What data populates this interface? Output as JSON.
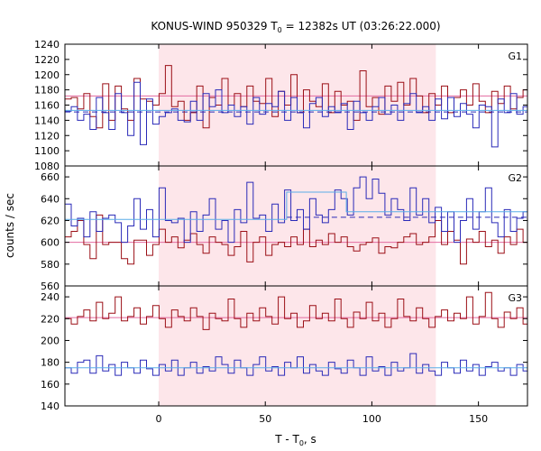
{
  "chart_data": {
    "type": "line",
    "title": "KONUS-WIND 950329 T",
    "title_sub": "0",
    "title_rest": " = 12382s UT (03:26:22.000)",
    "xlabel": "T - T",
    "xlabel_sub": "0",
    "xlabel_rest": ", s",
    "ylabel": "counts / sec",
    "xlim": [
      -44,
      173
    ],
    "x_ticks": [
      0,
      50,
      100,
      150
    ],
    "shaded_interval": [
      0,
      130
    ],
    "colors": {
      "red_series": "#9b0f16",
      "blue_series": "#2a2ab8",
      "red_fit": "#e36aa0",
      "blue_fit": "#5aaee8",
      "shade": "#fde6ea"
    },
    "bin_start": -44,
    "bin_width": 2.944,
    "panels": [
      {
        "name": "G1",
        "ylim": [
          1080,
          1240
        ],
        "y_ticks": [
          1080,
          1100,
          1120,
          1140,
          1160,
          1180,
          1200,
          1220,
          1240
        ],
        "red_fit": 1172,
        "blue_fit": 1153,
        "blue_steps": [
          [
            -44,
            173,
            1153
          ]
        ],
        "blue_dashed": [
          [
            -44,
            173,
            1151
          ]
        ],
        "red": [
          1168,
          1170,
          1155,
          1175,
          1145,
          1130,
          1188,
          1140,
          1185,
          1155,
          1140,
          1195,
          1168,
          1165,
          1160,
          1175,
          1212,
          1158,
          1165,
          1140,
          1150,
          1185,
          1130,
          1170,
          1160,
          1195,
          1160,
          1175,
          1158,
          1185,
          1165,
          1162,
          1195,
          1145,
          1178,
          1160,
          1200,
          1150,
          1180,
          1165,
          1158,
          1188,
          1150,
          1178,
          1160,
          1165,
          1140,
          1205,
          1158,
          1170,
          1148,
          1185,
          1165,
          1190,
          1160,
          1195,
          1172,
          1150,
          1175,
          1160,
          1185,
          1150,
          1170,
          1180,
          1160,
          1188,
          1165,
          1150,
          1178,
          1162,
          1185,
          1155,
          1170,
          1180
        ],
        "blue": [
          1152,
          1158,
          1140,
          1148,
          1128,
          1170,
          1150,
          1128,
          1175,
          1150,
          1120,
          1190,
          1108,
          1168,
          1135,
          1145,
          1150,
          1155,
          1140,
          1138,
          1165,
          1140,
          1175,
          1158,
          1180,
          1150,
          1160,
          1145,
          1158,
          1135,
          1170,
          1148,
          1162,
          1158,
          1178,
          1140,
          1170,
          1150,
          1130,
          1162,
          1170,
          1145,
          1158,
          1150,
          1162,
          1128,
          1165,
          1150,
          1140,
          1158,
          1170,
          1148,
          1160,
          1140,
          1162,
          1175,
          1150,
          1158,
          1140,
          1168,
          1142,
          1170,
          1145,
          1162,
          1148,
          1130,
          1160,
          1158,
          1105,
          1168,
          1150,
          1175,
          1148,
          1158
        ]
      },
      {
        "name": "G2",
        "ylim": [
          560,
          670
        ],
        "y_ticks": [
          560,
          580,
          600,
          620,
          640,
          660
        ],
        "red_fit": 600,
        "blue_fit": 621,
        "blue_steps": [
          [
            -44,
            60,
            621
          ],
          [
            60,
            88,
            646
          ],
          [
            88,
            173,
            628
          ]
        ],
        "blue_dashed": [
          [
            60,
            173,
            623
          ]
        ],
        "red": [
          605,
          610,
          620,
          598,
          585,
          625,
          598,
          600,
          600,
          585,
          580,
          602,
          602,
          588,
          598,
          612,
          600,
          605,
          595,
          602,
          608,
          598,
          590,
          605,
          600,
          598,
          588,
          596,
          610,
          582,
          600,
          605,
          588,
          598,
          600,
          596,
          605,
          598,
          612,
          596,
          602,
          598,
          608,
          600,
          605,
          596,
          592,
          598,
          600,
          604,
          590,
          596,
          595,
          600,
          605,
          608,
          598,
          600,
          605,
          620,
          598,
          610,
          602,
          580,
          603,
          600,
          610,
          596,
          602,
          590,
          605,
          598,
          612,
          600
        ],
        "blue": [
          635,
          615,
          622,
          605,
          628,
          610,
          622,
          625,
          618,
          600,
          615,
          640,
          612,
          630,
          605,
          650,
          620,
          618,
          622,
          600,
          628,
          610,
          625,
          640,
          612,
          620,
          600,
          630,
          618,
          655,
          622,
          625,
          610,
          635,
          618,
          648,
          620,
          630,
          612,
          640,
          625,
          618,
          630,
          648,
          640,
          625,
          650,
          660,
          640,
          658,
          645,
          625,
          640,
          630,
          620,
          650,
          625,
          640,
          618,
          632,
          610,
          628,
          600,
          620,
          640,
          612,
          628,
          650,
          618,
          605,
          630,
          610,
          622,
          628
        ]
      },
      {
        "name": "G3",
        "ylim": [
          140,
          250
        ],
        "y_ticks": [
          140,
          160,
          180,
          200,
          220,
          240
        ],
        "red_fit": 221,
        "blue_fit": 175,
        "blue_steps": [
          [
            -44,
            173,
            175
          ]
        ],
        "blue_dashed": [],
        "red": [
          220,
          215,
          222,
          228,
          218,
          235,
          220,
          225,
          240,
          218,
          222,
          230,
          215,
          222,
          232,
          220,
          212,
          228,
          222,
          218,
          230,
          222,
          210,
          225,
          220,
          218,
          238,
          220,
          212,
          225,
          218,
          230,
          222,
          215,
          240,
          220,
          225,
          212,
          218,
          232,
          220,
          225,
          218,
          238,
          220,
          212,
          226,
          220,
          235,
          218,
          225,
          212,
          220,
          238,
          222,
          218,
          230,
          220,
          212,
          222,
          228,
          218,
          225,
          220,
          240,
          215,
          222,
          244,
          220,
          212,
          226,
          220,
          230,
          215
        ],
        "blue": [
          175,
          170,
          180,
          182,
          170,
          186,
          172,
          178,
          168,
          180,
          175,
          170,
          182,
          174,
          168,
          178,
          172,
          182,
          168,
          175,
          180,
          170,
          176,
          172,
          185,
          178,
          170,
          182,
          175,
          168,
          178,
          185,
          172,
          176,
          168,
          180,
          175,
          185,
          170,
          178,
          172,
          168,
          180,
          174,
          170,
          182,
          175,
          168,
          185,
          172,
          176,
          168,
          180,
          172,
          175,
          188,
          170,
          178,
          172,
          168,
          180,
          175,
          170,
          182,
          172,
          178,
          168,
          176,
          180,
          172,
          175,
          168,
          178,
          172
        ]
      }
    ]
  }
}
